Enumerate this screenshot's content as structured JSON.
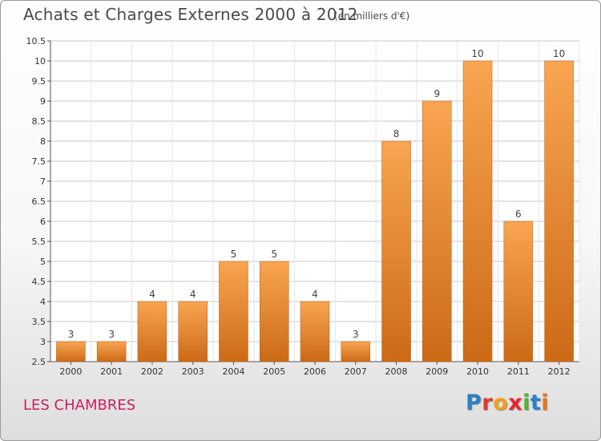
{
  "header": {
    "title": "Achats et Charges Externes 2000 à 2012",
    "subtitle": "(en milliers d'€)"
  },
  "footer": {
    "commune": "LES CHAMBRES",
    "logo": "Proxiti"
  },
  "chart_data": {
    "type": "bar",
    "categories": [
      "2000",
      "2001",
      "2002",
      "2003",
      "2004",
      "2005",
      "2006",
      "2007",
      "2008",
      "2009",
      "2010",
      "2011",
      "2012"
    ],
    "values": [
      3,
      3,
      4,
      4,
      5,
      5,
      4,
      3,
      8,
      9,
      10,
      6,
      10
    ],
    "data_labels": [
      "3",
      "3",
      "4",
      "4",
      "5",
      "5",
      "4",
      "3",
      "8",
      "9",
      "10",
      "6",
      "10"
    ],
    "ylim": [
      2.5,
      10.5
    ],
    "yticks": [
      2.5,
      3,
      3.5,
      4,
      4.5,
      5,
      5.5,
      6,
      6.5,
      7,
      7.5,
      8,
      8.5,
      9,
      9.5,
      10,
      10.5
    ],
    "ytick_labels": [
      "2.5",
      "3",
      "3.5",
      "4",
      "4.5",
      "5",
      "5.5",
      "6",
      "6.5",
      "7",
      "7.5",
      "8",
      "8.5",
      "9",
      "9.5",
      "10",
      "10.5"
    ],
    "grid": true,
    "colors": {
      "bar_top": "#f9a551",
      "bar_bottom": "#cc6a16",
      "grid": "#c8c8c8"
    }
  }
}
